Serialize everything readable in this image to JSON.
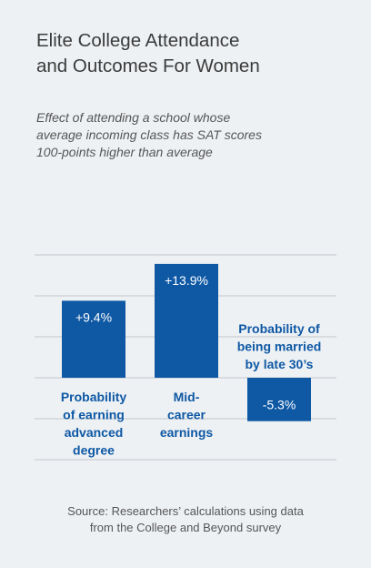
{
  "title_lines": [
    "Elite College Attendance",
    "and Outcomes For Women"
  ],
  "subtitle_lines": [
    "Effect of attending a school whose",
    "average incoming class has SAT scores",
    "100-points higher than average"
  ],
  "source_lines": [
    "Source: Researchers’ calculations using data",
    "from the College and Beyond survey"
  ],
  "colors": {
    "bar": "#0e58a4",
    "label": "#0e58a4",
    "grid": "#c3c7cc",
    "bar_text": "#ffffff",
    "background": "#eef1f4"
  },
  "chart_data": {
    "type": "bar",
    "categories": [
      "Probability of earning advanced degree",
      "Mid-career earnings",
      "Probability of being married by late 30’s"
    ],
    "category_label_lines": [
      [
        "Probability",
        "of earning",
        "advanced",
        "degree"
      ],
      [
        "Mid-",
        "career",
        "earnings"
      ],
      [
        "Probability of",
        "being married",
        "by late 30’s"
      ]
    ],
    "values": [
      9.4,
      13.9,
      -5.3
    ],
    "value_labels": [
      "+9.4%",
      "+13.9%",
      "-5.3%"
    ],
    "unit": "%",
    "ylim": [
      -10,
      15
    ],
    "grid": true,
    "axis_labels_shown": false
  }
}
